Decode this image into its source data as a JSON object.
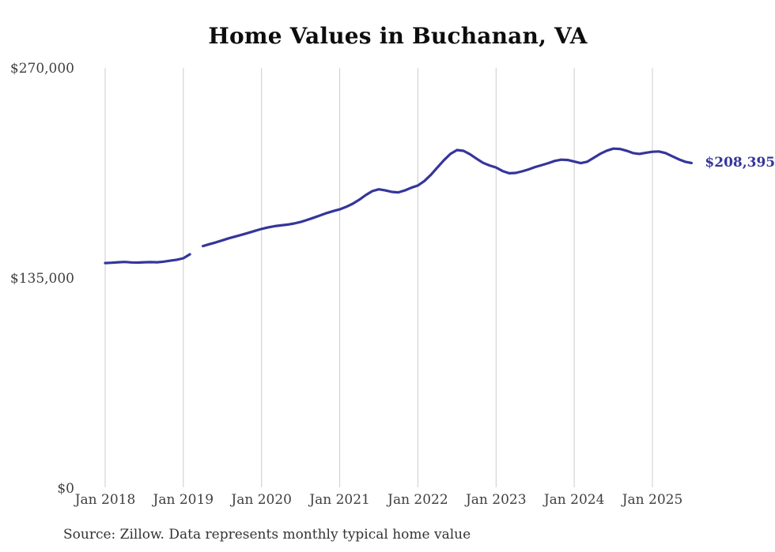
{
  "chart_data": {
    "type": "line",
    "title": "Home Values in Buchanan, VA",
    "source_note": "Source: Zillow. Data represents monthly typical home value",
    "end_label": "$208,395",
    "line_color": "#35359B",
    "grid_color": "#cccccc",
    "grid": "vertical-only",
    "legend_position": "none",
    "xlabel": "",
    "ylabel": "",
    "ylim": [
      0,
      270000
    ],
    "y_ticks": [
      {
        "label": "$0",
        "value": 0
      },
      {
        "label": "$135,000",
        "value": 135000
      },
      {
        "label": "$270,000",
        "value": 270000
      }
    ],
    "x_ticks": [
      {
        "label": "Jan 2018",
        "month_index": 0
      },
      {
        "label": "Jan 2019",
        "month_index": 12
      },
      {
        "label": "Jan 2020",
        "month_index": 24
      },
      {
        "label": "Jan 2021",
        "month_index": 36
      },
      {
        "label": "Jan 2022",
        "month_index": 48
      },
      {
        "label": "Jan 2023",
        "month_index": 60
      },
      {
        "label": "Jan 2024",
        "month_index": 72
      },
      {
        "label": "Jan 2025",
        "month_index": 84
      }
    ],
    "series": [
      {
        "name": "Monthly typical home value (USD)",
        "start_month": "2018-01",
        "end_month": "2025-07",
        "interval": "monthly",
        "gap_months": [
          "2019-03"
        ],
        "values": [
          144100,
          144300,
          144600,
          144800,
          144500,
          144400,
          144600,
          144700,
          144600,
          145000,
          145600,
          146200,
          147200,
          149700,
          null,
          155000,
          156200,
          157400,
          158700,
          160000,
          161200,
          162300,
          163500,
          164800,
          166000,
          167000,
          167800,
          168300,
          168800,
          169500,
          170500,
          171800,
          173200,
          174700,
          176200,
          177500,
          178600,
          180200,
          182200,
          184800,
          187800,
          190300,
          191500,
          190800,
          189800,
          189500,
          190800,
          192500,
          193900,
          196800,
          200800,
          205500,
          210200,
          214200,
          216700,
          216200,
          214000,
          211200,
          208500,
          206800,
          205500,
          203200,
          201800,
          202000,
          203000,
          204300,
          205800,
          207000,
          208300,
          209700,
          210500,
          210300,
          209300,
          208300,
          209200,
          211800,
          214300,
          216300,
          217600,
          217400,
          216300,
          214800,
          214200,
          215000,
          215600,
          215800,
          214800,
          212800,
          210800,
          209200,
          208395
        ]
      }
    ]
  }
}
